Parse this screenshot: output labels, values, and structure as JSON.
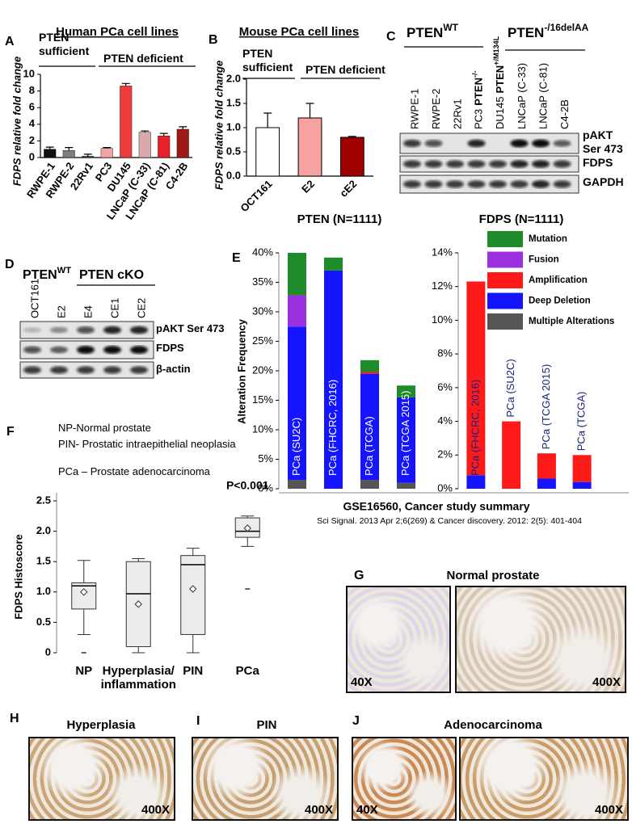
{
  "chart_data": [
    {
      "type": "bar",
      "panel": "A",
      "title": "Human PCa cell lines",
      "group_labels": [
        "PTEN sufficient",
        "PTEN deficient"
      ],
      "y_label": "FDPS relative fold change",
      "categories": [
        "RWPE-1",
        "RWPE-2",
        "22Rv1",
        "PC3",
        "DU145",
        "LNCaP (C-33)",
        "LNCaP (C-81)",
        "C4-2B"
      ],
      "values": [
        1.0,
        0.85,
        0.15,
        1.1,
        8.6,
        3.05,
        2.6,
        3.4
      ],
      "errors": [
        0.25,
        0.35,
        0.25,
        0.1,
        0.3,
        0.15,
        0.3,
        0.3
      ],
      "colors": [
        "#111111",
        "#7f7f7f",
        "#3a3a3a",
        "#f4a4a4",
        "#f03c3c",
        "#d9aaaa",
        "#e8202a",
        "#a01818"
      ],
      "ylim": [
        0,
        10
      ],
      "yticks": [
        0,
        2,
        4,
        6,
        8,
        10
      ]
    },
    {
      "type": "bar",
      "panel": "B",
      "title": "Mouse PCa cell lines",
      "group_labels": [
        "PTEN sufficient",
        "PTEN deficient"
      ],
      "y_label": "FDPS relative fold change",
      "categories": [
        "OCT161",
        "E2",
        "cE2"
      ],
      "values": [
        1.0,
        1.2,
        0.8
      ],
      "errors": [
        0.3,
        0.3,
        0.02
      ],
      "colors": [
        "#ffffff",
        "#f7a1a1",
        "#a00000"
      ],
      "ylim": [
        0,
        2
      ],
      "yticks": [
        {
          "value": 0,
          "label": "0.0"
        },
        0.5,
        {
          "value": 1,
          "label": "1.0"
        },
        1.5,
        {
          "value": 2,
          "label": "2.0"
        }
      ]
    },
    {
      "type": "stacked_bar",
      "panel": "E",
      "title": "PTEN (N=1111)",
      "y_label": "Alteration Frequency",
      "categories": [
        "PCa (SU2C)",
        "PCa (FHCRC, 2016)",
        "PCa (TCGA)",
        "PCa (TCGA 2015)"
      ],
      "series": [
        {
          "name": "Multiple Alterations",
          "color": "#555555",
          "values": [
            1.5,
            0,
            1.5,
            1.0
          ]
        },
        {
          "name": "Deep Deletion",
          "color": "#1414ff",
          "values": [
            26,
            37,
            18,
            14.5
          ]
        },
        {
          "name": "Amplification",
          "color": "#ff1a1a",
          "values": [
            0,
            0,
            0.3,
            0
          ]
        },
        {
          "name": "Fusion",
          "color": "#9b30e0",
          "values": [
            5.3,
            0,
            0,
            0
          ]
        },
        {
          "name": "Mutation",
          "color": "#1e8c2a",
          "values": [
            7.2,
            2.2,
            2.0,
            2.0
          ]
        }
      ],
      "ylim": [
        0,
        40
      ],
      "yticks": [
        {
          "value": 0,
          "label": "0%"
        },
        {
          "value": 5,
          "label": "5%"
        },
        {
          "value": 10,
          "label": "10%"
        },
        {
          "value": 15,
          "label": "15%"
        },
        {
          "value": 20,
          "label": "20%"
        },
        {
          "value": 25,
          "label": "25%"
        },
        {
          "value": 30,
          "label": "30%"
        },
        {
          "value": 35,
          "label": "35%"
        },
        {
          "value": 40,
          "label": "40%"
        }
      ]
    },
    {
      "type": "stacked_bar",
      "title": "FDPS (N=1111)",
      "categories": [
        "PCa (FHCRC, 2016)",
        "PCa (SU2C)",
        "PCa (TCGA 2015)",
        "PCa (TCGA)"
      ],
      "series": [
        {
          "color": "#1414ff",
          "values": [
            0.8,
            0,
            0.6,
            0.4
          ]
        },
        {
          "color": "#ff1a1a",
          "values": [
            11.5,
            4.0,
            1.5,
            1.6
          ]
        }
      ],
      "ylim": [
        0,
        14
      ],
      "yticks": [
        {
          "value": 0,
          "label": "0%"
        },
        {
          "value": 2,
          "label": "2%"
        },
        {
          "value": 4,
          "label": "4%"
        },
        {
          "value": 6,
          "label": "6%"
        },
        {
          "value": 8,
          "label": "8%"
        },
        {
          "value": 10,
          "label": "10%"
        },
        {
          "value": 12,
          "label": "12%"
        },
        {
          "value": 14,
          "label": "14%"
        }
      ]
    },
    {
      "type": "box",
      "panel": "F",
      "y_label": "FDPS Histoscore",
      "notes": [
        "NP-Normal prostate",
        "PIN- Prostatic intraepithelial neoplasia",
        "PCa – Prostate adenocarcinoma"
      ],
      "annotation": "P<0.001",
      "categories": [
        "NP",
        "Hyperplasia/ inflammation",
        "PIN",
        "PCa"
      ],
      "min": [
        0.3,
        0,
        0,
        1.75
      ],
      "q1": [
        0.72,
        0.1,
        0.3,
        1.9
      ],
      "median": [
        1.1,
        0.97,
        1.45,
        2.0
      ],
      "q3": [
        1.15,
        1.5,
        1.6,
        2.22
      ],
      "max": [
        1.52,
        1.55,
        1.72,
        2.25
      ],
      "mean": [
        1.0,
        0.8,
        1.05,
        2.05
      ],
      "outliers": [
        [
          0
        ],
        [],
        [],
        [
          1.05
        ]
      ],
      "ylim": [
        0,
        2.5
      ],
      "yticks": [
        0,
        0.5,
        {
          "value": 1,
          "label": "1.0"
        },
        1.5,
        {
          "value": 2,
          "label": "2.0"
        },
        2.5
      ]
    }
  ],
  "summary": {
    "title": "GSE16560, Cancer study summary",
    "citation": "Sci Signal. 2013 Apr 2;6(269) & Cancer discovery. 2012: 2(5): 401-404"
  },
  "blots": [
    {
      "panel": "C",
      "headers": [
        {
          "text": "PTEN",
          "sup": "WT"
        },
        {
          "text": "PTEN",
          "sup": "-/16delAA"
        }
      ],
      "lanes": [
        "RWPE-1",
        "RWPE-2",
        "22Rv1",
        {
          "text": "PC3",
          "emph": "PTEN",
          "sup": "-/-"
        },
        {
          "text": "DU145",
          "emph": "PTEN",
          "sup": "+/M134L"
        },
        "LNCaP (C-33)",
        "LNCaP (C-81)",
        "C4-2B"
      ],
      "rows": [
        "pAKT Ser 473",
        "FDPS",
        "GAPDH"
      ]
    },
    {
      "panel": "D",
      "headers": [
        {
          "text": "PTEN",
          "sup": "WT"
        },
        {
          "text": "PTEN cKO"
        }
      ],
      "lanes": [
        "OCT161",
        "E2",
        "E4",
        "CE1",
        "CE2"
      ],
      "rows": [
        "pAKT Ser 473",
        "FDPS",
        "β-actin"
      ]
    }
  ],
  "images": [
    {
      "panel": "G",
      "title": "Normal prostate",
      "magnifications": [
        "40X",
        "400X"
      ]
    },
    {
      "panel": "H",
      "title": "Hyperplasia",
      "magnifications": [
        "400X"
      ]
    },
    {
      "panel": "I",
      "title": "PIN",
      "magnifications": [
        "400X"
      ]
    },
    {
      "panel": "J",
      "title": "Adenocarcinoma",
      "magnifications": [
        "40X",
        "400X"
      ]
    }
  ]
}
